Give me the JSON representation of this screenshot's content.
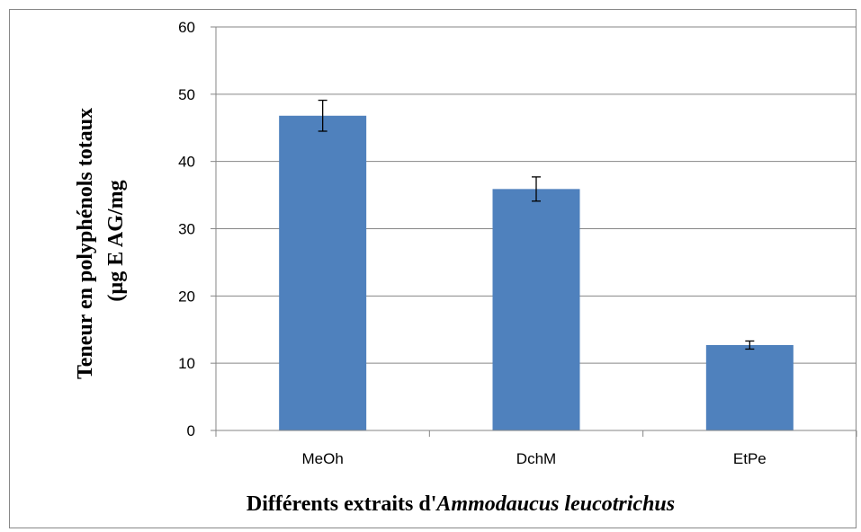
{
  "chart_data": {
    "type": "bar",
    "categories": [
      "MeOh",
      "DchM",
      "EtPe"
    ],
    "values": [
      46.8,
      35.9,
      12.7
    ],
    "errors": [
      2.3,
      1.8,
      0.6
    ],
    "title": "",
    "xlabel": {
      "prefix": "Différents extraits d'",
      "italic": "Ammodaucus leucotrichus"
    },
    "ylabel": {
      "line1": "Teneur en polyphénols totaux",
      "line2": "(µg E AG/mg"
    },
    "ylim": [
      0,
      60
    ],
    "yticks": [
      "0",
      "10",
      "20",
      "30",
      "40",
      "50",
      "60"
    ],
    "grid": true,
    "bar_color": "#4F81BD",
    "grid_color": "#868686"
  }
}
